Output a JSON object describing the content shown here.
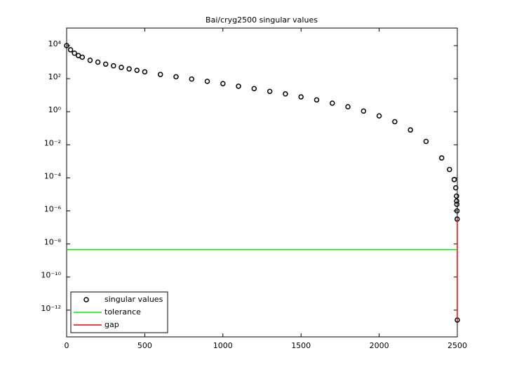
{
  "chart_data": {
    "type": "log-scatter-lines",
    "title": "Bai/cryg2500 singular values",
    "xlim": [
      0,
      2500
    ],
    "xticks": [
      0,
      500,
      1000,
      1500,
      2000,
      2500
    ],
    "ylim": [
      2.4e-14,
      115000
    ],
    "log_y": true,
    "yticks": [
      {
        "value": 10000,
        "label": "10⁴"
      },
      {
        "value": 100,
        "label": "10²"
      },
      {
        "value": 1,
        "label": "10⁰"
      },
      {
        "value": 0.01,
        "label": "10⁻²"
      },
      {
        "value": 0.0001,
        "label": "10⁻⁴"
      },
      {
        "value": 1e-06,
        "label": "10⁻⁶"
      },
      {
        "value": 1e-08,
        "label": "10⁻⁸"
      },
      {
        "value": 1e-10,
        "label": "10⁻¹⁰"
      },
      {
        "value": 1e-12,
        "label": "10⁻¹²"
      }
    ],
    "legend": "lower left",
    "series": [
      {
        "name": "singular values",
        "color": "#000000",
        "style": "markers",
        "x": [
          0,
          25,
          50,
          75,
          100,
          150,
          200,
          250,
          300,
          350,
          400,
          450,
          500,
          600,
          700,
          800,
          900,
          1000,
          1100,
          1200,
          1300,
          1400,
          1500,
          1600,
          1700,
          1800,
          1900,
          2000,
          2100,
          2200,
          2300,
          2400,
          2450,
          2480,
          2490,
          2495,
          2496,
          2497,
          2498,
          2499,
          2500
        ],
        "values": [
          10000,
          5600,
          3500,
          2500,
          2000,
          1300,
          1000,
          760,
          600,
          480,
          390,
          320,
          260,
          180,
          130,
          95,
          69,
          50,
          35,
          25,
          17,
          12,
          7.9,
          5.2,
          3.3,
          2.0,
          1.1,
          0.56,
          0.25,
          0.079,
          0.016,
          0.0016,
          0.00032,
          7.9e-05,
          2.5e-05,
          7.9e-06,
          4e-06,
          2.5e-06,
          1e-06,
          3.2e-07,
          2.5e-13
        ]
      },
      {
        "name": "tolerance",
        "color": "#00ee00",
        "style": "line",
        "x": [
          0,
          2500
        ],
        "values": [
          4.6e-09,
          4.6e-09
        ]
      },
      {
        "name": "gap",
        "color": "#ee0000",
        "style": "line",
        "x": [
          2500,
          2500
        ],
        "values": [
          3.2e-07,
          2.5e-13
        ]
      }
    ]
  }
}
